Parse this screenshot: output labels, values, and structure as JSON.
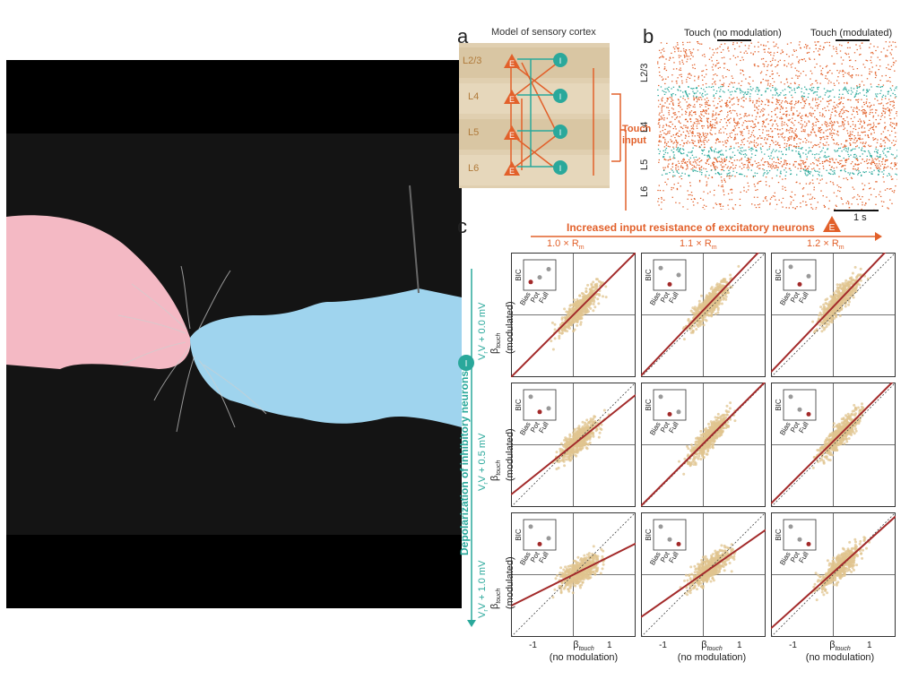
{
  "colors": {
    "excitatory": "#e2602a",
    "inhibitory": "#2aa89b",
    "scatter": "#e0c48f",
    "fit": "#a32a2a",
    "model_bg": "#e0cfb0",
    "pink_mouse": "#f4b9c4",
    "blue_mouse": "#9fd4ee"
  },
  "panel_a": {
    "letter": "a",
    "title": "Model of sensory cortex",
    "layers": [
      "L2/3",
      "L4",
      "L5",
      "L6"
    ],
    "exc_symbol": "E",
    "inh_symbol": "I",
    "touch_input": "Touch input"
  },
  "panel_b": {
    "letter": "b",
    "touch_no_mod": "Touch (no modulation)",
    "touch_mod": "Touch (modulated)",
    "layers": [
      "L2/3",
      "L4",
      "L5",
      "L6"
    ],
    "scale_bar": "1 s"
  },
  "panel_c": {
    "letter": "c",
    "top_axis": "Increased input resistance of excitatory neurons",
    "exc_badge": "E",
    "columns": [
      "1.0 × R",
      "1.1 × R",
      "1.2 × R"
    ],
    "col_subscript": "m",
    "left_axis": "Depolarization of inhibitory neurons",
    "inh_badge": "I",
    "rows": [
      "V + 0.0 mV",
      "V + 0.5 mV",
      "V + 1.0 mV"
    ],
    "row_subscript": "r",
    "ylabel_main": "β",
    "ylabel_sub": "touch",
    "ylabel_paren": "(modulated)",
    "xlabel_main": "β",
    "xlabel_sub": "touch",
    "xlabel_paren": "(no modulation)",
    "ticks": [
      "-1",
      "1"
    ],
    "inset_ylabel": "BIC",
    "inset_xlabels": [
      "Bias",
      "Pot",
      "Full"
    ]
  },
  "chart_data": [
    {
      "type": "scatter",
      "panel": "c",
      "xlabel": "β touch (no modulation)",
      "ylabel": "β touch (modulated)",
      "cells": [
        {
          "row": 0,
          "col": 0,
          "fit_slope": 1.0,
          "fit_intercept": 0.0,
          "inset_bic": [
            0.2,
            0.4,
            0.75
          ]
        },
        {
          "row": 0,
          "col": 1,
          "fit_slope": 1.05,
          "fit_intercept": 0.2,
          "inset_bic": [
            0.8,
            0.1,
            0.5
          ]
        },
        {
          "row": 0,
          "col": 2,
          "fit_slope": 1.05,
          "fit_intercept": 0.35,
          "inset_bic": [
            0.85,
            0.1,
            0.45
          ]
        },
        {
          "row": 1,
          "col": 0,
          "fit_slope": 0.8,
          "fit_intercept": 0.0,
          "inset_bic": [
            0.85,
            0.2,
            0.35
          ]
        },
        {
          "row": 1,
          "col": 1,
          "fit_slope": 1.0,
          "fit_intercept": 0.05,
          "inset_bic": [
            0.85,
            0.1,
            0.2
          ]
        },
        {
          "row": 1,
          "col": 2,
          "fit_slope": 1.0,
          "fit_intercept": 0.15,
          "inset_bic": [
            0.85,
            0.3,
            0.1
          ]
        },
        {
          "row": 2,
          "col": 0,
          "fit_slope": 0.5,
          "fit_intercept": 0.0,
          "inset_bic": [
            0.85,
            0.1,
            0.35
          ]
        },
        {
          "row": 2,
          "col": 1,
          "fit_slope": 0.7,
          "fit_intercept": 0.05,
          "inset_bic": [
            0.85,
            0.3,
            0.1
          ]
        },
        {
          "row": 2,
          "col": 2,
          "fit_slope": 0.9,
          "fit_intercept": 0.1,
          "inset_bic": [
            0.85,
            0.3,
            0.1
          ]
        }
      ]
    }
  ]
}
